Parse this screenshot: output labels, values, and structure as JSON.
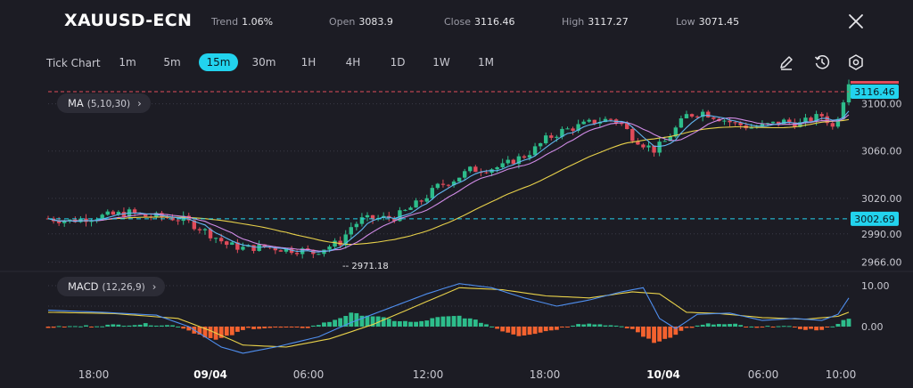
{
  "header": {
    "symbol": "XAUUSD-ECN",
    "trend_label": "Trend",
    "trend_value": "1.06%",
    "open_label": "Open",
    "open_value": "3083.9",
    "close_label": "Close",
    "close_value": "3116.46",
    "high_label": "High",
    "high_value": "3117.27",
    "low_label": "Low",
    "low_value": "3071.45"
  },
  "toolbar": {
    "tick_chart_label": "Tick Chart",
    "timeframes": [
      "1m",
      "5m",
      "15m",
      "30m",
      "1H",
      "4H",
      "1D",
      "1W",
      "1M"
    ],
    "active_timeframe": "15m"
  },
  "indicators": {
    "ma_label": "MA",
    "ma_params": "(5,10,30)",
    "macd_label": "MACD",
    "macd_params": "(12,26,9)"
  },
  "colors": {
    "background": "#1c1c24",
    "up": "#2dbd8b",
    "down": "#e04b5a",
    "ma5": "#63b7f2",
    "ma10": "#d08be6",
    "ma30": "#e8d14a",
    "accent": "#22d3ee",
    "macd_pos": "#2dbd8b",
    "macd_neg": "#f4622f"
  },
  "chart_data": {
    "type": "candlestick",
    "price_axis": {
      "ticks": [
        "3100.00",
        "3060.00",
        "3020.00",
        "2990.00",
        "2966.00"
      ],
      "tick_values": [
        3100,
        3060,
        3020,
        2990,
        2966
      ],
      "range": [
        2962,
        3120
      ]
    },
    "current_price_label": "3116.46",
    "current_price": 3116.46,
    "reference_price_label": "3002.69",
    "reference_price": 3002.69,
    "low_annotation": "-- 2971.18",
    "low_annotation_value": 2971.18,
    "time_axis": [
      "18:00",
      "09/04",
      "06:00",
      "12:00",
      "18:00",
      "10/04",
      "06:00",
      "10:00"
    ],
    "bold_time_labels": [
      "09/04",
      "10/04"
    ],
    "macd_axis": {
      "ticks": [
        "10.00",
        "0.00"
      ],
      "tick_values": [
        10,
        0
      ]
    },
    "price_path": [
      [
        0,
        3003
      ],
      [
        4,
        3001
      ],
      [
        8,
        3004
      ],
      [
        12,
        3006
      ],
      [
        15,
        3008
      ],
      [
        18,
        3005
      ],
      [
        22,
        3004
      ],
      [
        25,
        3002
      ],
      [
        28,
        2995
      ],
      [
        31,
        2987
      ],
      [
        33,
        2981
      ],
      [
        36,
        2978
      ],
      [
        40,
        2979
      ],
      [
        44,
        2977
      ],
      [
        47,
        2976
      ],
      [
        49,
        2974
      ],
      [
        51,
        2978
      ],
      [
        54,
        2983
      ],
      [
        56,
        2996
      ],
      [
        58,
        3002
      ],
      [
        61,
        3003
      ],
      [
        64,
        3004
      ],
      [
        66,
        3009
      ],
      [
        69,
        3018
      ],
      [
        72,
        3030
      ],
      [
        75,
        3036
      ],
      [
        78,
        3044
      ],
      [
        81,
        3045
      ],
      [
        84,
        3047
      ],
      [
        86,
        3052
      ],
      [
        88,
        3056
      ],
      [
        90,
        3062
      ],
      [
        92,
        3070
      ],
      [
        95,
        3077
      ],
      [
        98,
        3081
      ],
      [
        101,
        3085
      ],
      [
        104,
        3087
      ],
      [
        106,
        3083
      ],
      [
        108,
        3072
      ],
      [
        110,
        3066
      ],
      [
        112,
        3061
      ],
      [
        114,
        3068
      ],
      [
        116,
        3079
      ],
      [
        118,
        3090
      ],
      [
        121,
        3093
      ],
      [
        124,
        3088
      ],
      [
        127,
        3083
      ],
      [
        130,
        3080
      ],
      [
        133,
        3082
      ],
      [
        136,
        3085
      ],
      [
        139,
        3083
      ],
      [
        141,
        3087
      ],
      [
        143,
        3090
      ],
      [
        144,
        3086
      ],
      [
        145,
        3080
      ],
      [
        146,
        3090
      ],
      [
        147,
        3104
      ],
      [
        148,
        3116
      ]
    ],
    "macd_hist_path": [
      [
        0,
        -0.2
      ],
      [
        10,
        0.3
      ],
      [
        18,
        0.6
      ],
      [
        24,
        0.2
      ],
      [
        27,
        -1.5
      ],
      [
        31,
        -3.3
      ],
      [
        34,
        -2
      ],
      [
        37,
        -0.4
      ],
      [
        42,
        -0.3
      ],
      [
        48,
        -0.2
      ],
      [
        52,
        1.2
      ],
      [
        56,
        3.2
      ],
      [
        60,
        2.6
      ],
      [
        64,
        1.5
      ],
      [
        68,
        1.0
      ],
      [
        72,
        2.2
      ],
      [
        76,
        2.6
      ],
      [
        80,
        1.1
      ],
      [
        84,
        -1.0
      ],
      [
        87,
        -2.2
      ],
      [
        90,
        -1.6
      ],
      [
        94,
        -0.6
      ],
      [
        98,
        0.8
      ],
      [
        103,
        0.5
      ],
      [
        108,
        -0.6
      ],
      [
        112,
        -4.0
      ],
      [
        115,
        -2.5
      ],
      [
        118,
        -0.4
      ],
      [
        122,
        0.6
      ],
      [
        127,
        0.5
      ],
      [
        131,
        -0.4
      ],
      [
        135,
        0.3
      ],
      [
        139,
        -0.5
      ],
      [
        143,
        -0.9
      ],
      [
        146,
        0.8
      ],
      [
        148,
        2.1
      ]
    ],
    "macd_line_path": [
      [
        0,
        4
      ],
      [
        10,
        3.5
      ],
      [
        20,
        2.8
      ],
      [
        26,
        0
      ],
      [
        32,
        -5
      ],
      [
        36,
        -6.5
      ],
      [
        42,
        -5
      ],
      [
        50,
        -2.5
      ],
      [
        56,
        1
      ],
      [
        62,
        4
      ],
      [
        70,
        8
      ],
      [
        76,
        10.5
      ],
      [
        82,
        9.5
      ],
      [
        88,
        7
      ],
      [
        94,
        5
      ],
      [
        100,
        6.5
      ],
      [
        106,
        8.5
      ],
      [
        110,
        9.5
      ],
      [
        113,
        2
      ],
      [
        116,
        -0.5
      ],
      [
        120,
        3
      ],
      [
        126,
        3.3
      ],
      [
        132,
        1.5
      ],
      [
        138,
        2
      ],
      [
        143,
        1.5
      ],
      [
        146,
        3
      ],
      [
        148,
        7
      ]
    ],
    "macd_signal_path": [
      [
        0,
        3.5
      ],
      [
        12,
        3.2
      ],
      [
        24,
        2
      ],
      [
        30,
        -1
      ],
      [
        36,
        -4.5
      ],
      [
        44,
        -5
      ],
      [
        52,
        -3
      ],
      [
        60,
        0.5
      ],
      [
        68,
        5
      ],
      [
        76,
        9.5
      ],
      [
        84,
        9
      ],
      [
        92,
        7.5
      ],
      [
        100,
        7
      ],
      [
        108,
        8.5
      ],
      [
        113,
        8
      ],
      [
        118,
        3.5
      ],
      [
        124,
        3.2
      ],
      [
        132,
        2.2
      ],
      [
        140,
        1.8
      ],
      [
        146,
        2.5
      ],
      [
        148,
        3.5
      ]
    ]
  }
}
